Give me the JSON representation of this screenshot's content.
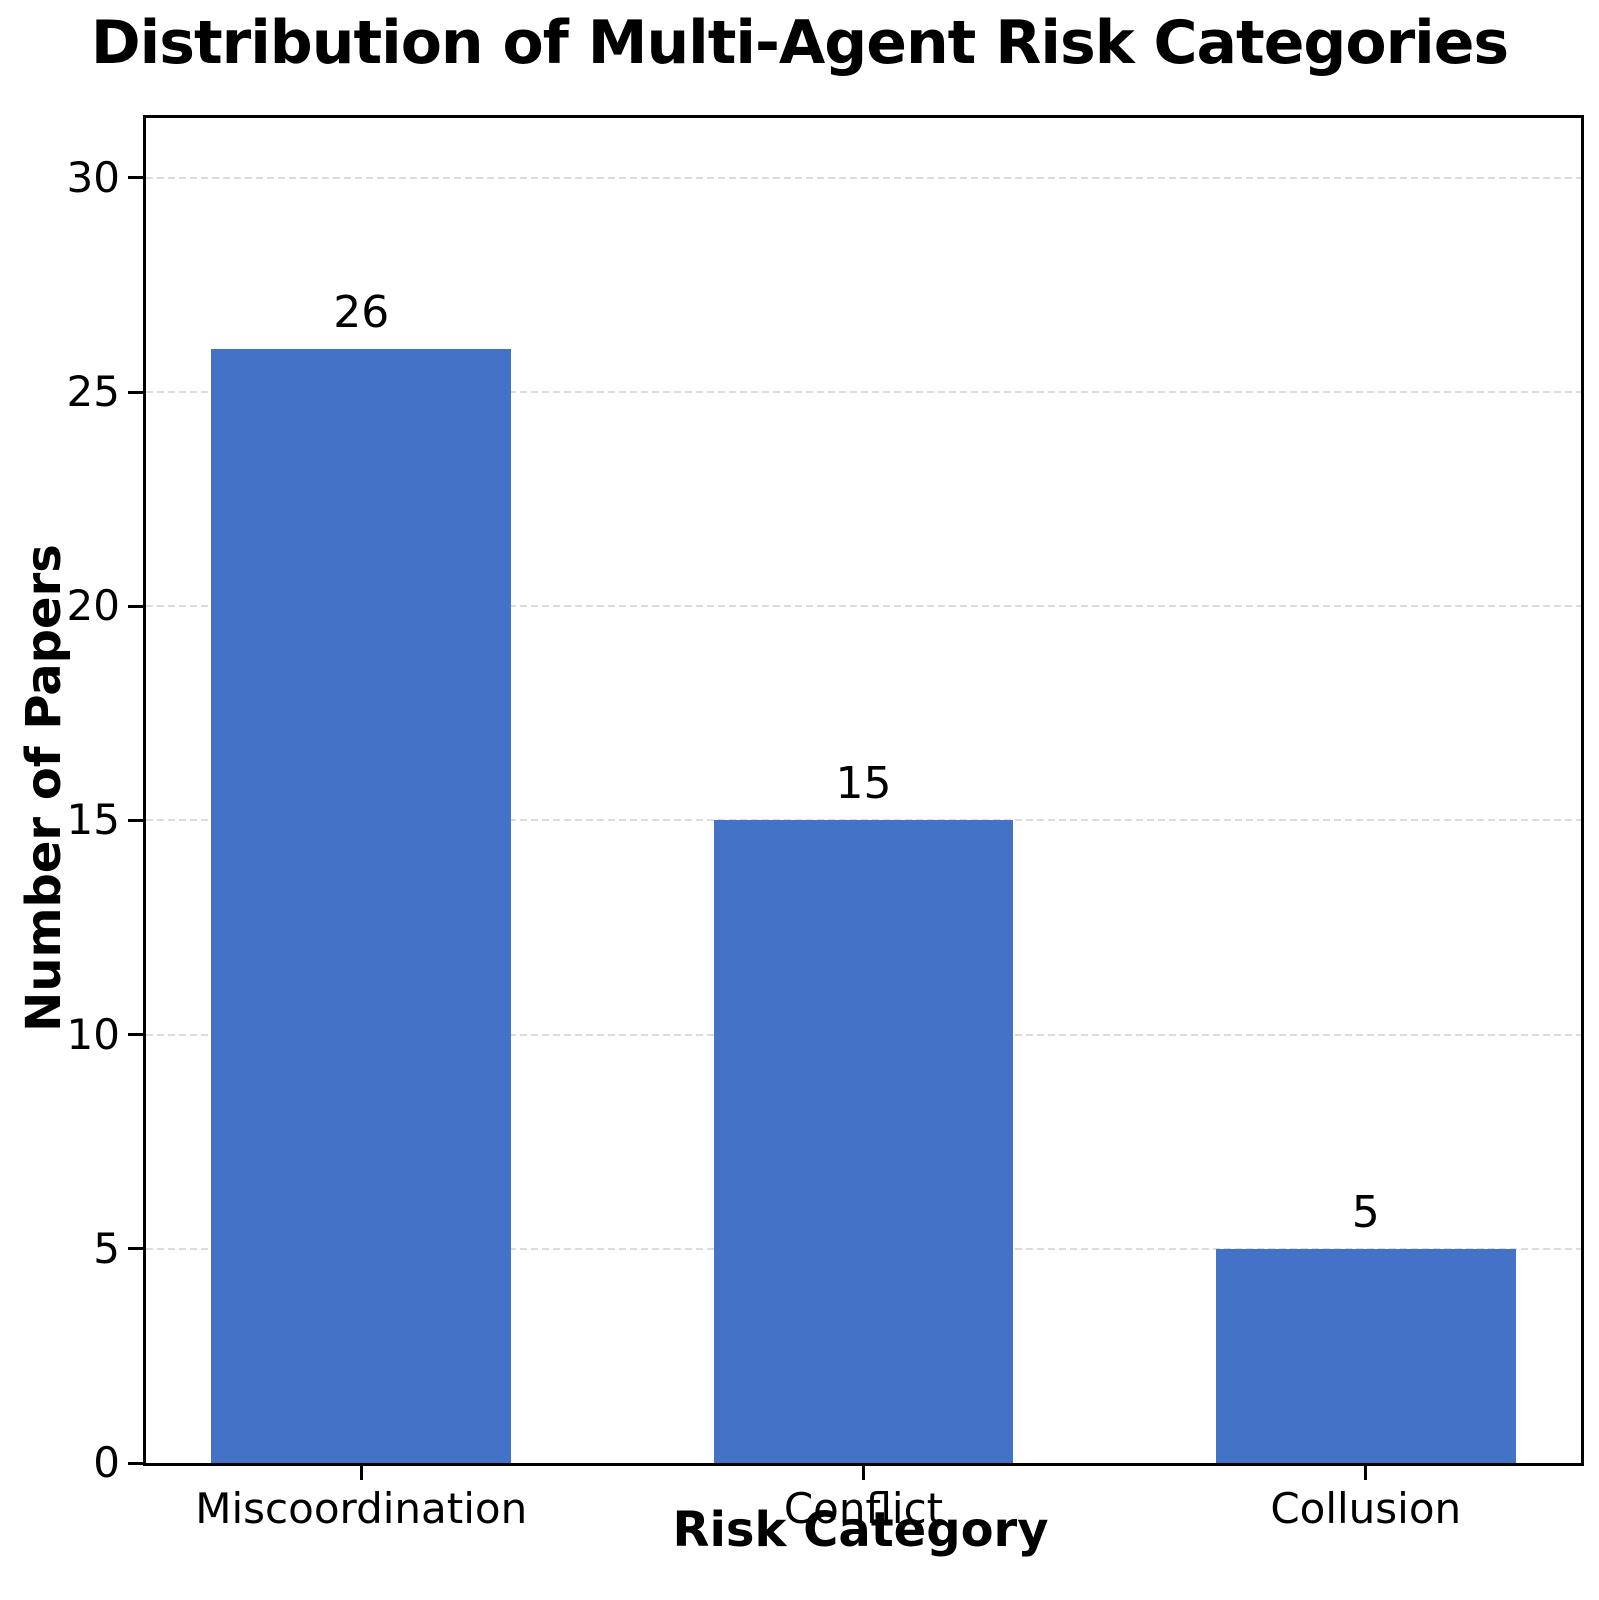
{
  "chart_data": {
    "type": "bar",
    "title": "Distribution of Multi-Agent Risk Categories",
    "xlabel": "Risk Category",
    "ylabel": "Number of Papers",
    "categories": [
      "Miscoordination",
      "Conflict",
      "Collusion"
    ],
    "values": [
      26,
      15,
      5
    ],
    "bar_labels": [
      "26",
      "15",
      "5"
    ],
    "yticks": [
      0,
      5,
      10,
      15,
      20,
      25,
      30
    ],
    "ytick_labels": [
      "0",
      "5",
      "10",
      "15",
      "20",
      "25",
      "30"
    ],
    "ylim": [
      0,
      31.4
    ],
    "grid": "horizontal-dashed",
    "legend": "none",
    "colors": {
      "bar": "#4472c6",
      "gridline": "#dcdcdc",
      "spine": "#000000",
      "text": "#000000",
      "background": "#ffffff"
    }
  }
}
